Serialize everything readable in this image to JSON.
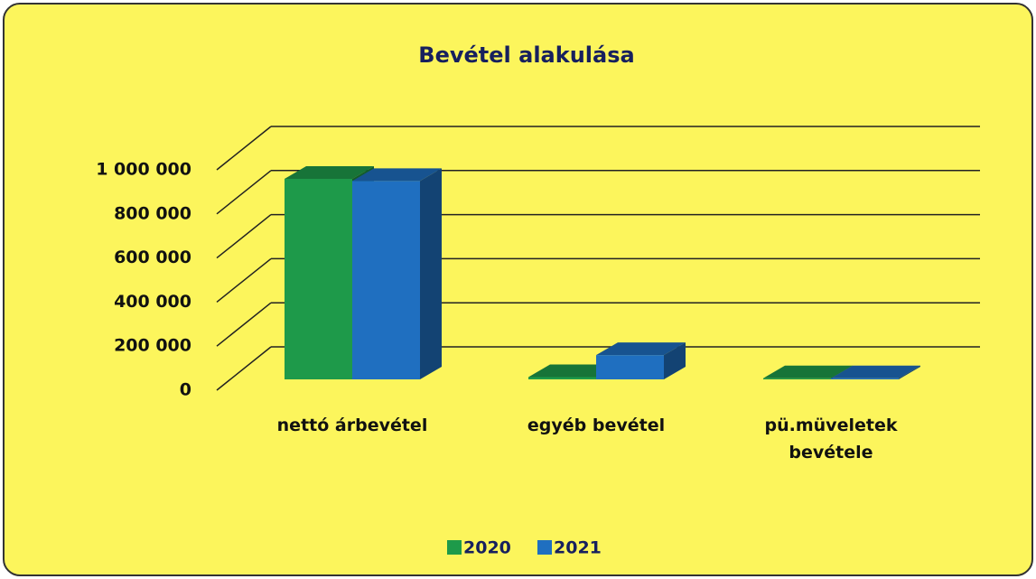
{
  "chart_data": {
    "type": "bar3d",
    "title": "Bevétel alakulása",
    "categories": [
      "nettó árbevétel",
      "egyéb bevétel",
      "pü.müveletek bevétele"
    ],
    "series": [
      {
        "name": "2020",
        "color": "#1e9a4a",
        "values": [
          910000,
          10000,
          5000
        ]
      },
      {
        "name": "2021",
        "color": "#1f6fc0",
        "values": [
          900000,
          110000,
          5000
        ]
      }
    ],
    "ylim": [
      0,
      1000000
    ],
    "yticks": [
      0,
      {
        "value": 200000,
        "label": "200 000"
      },
      {
        "value": 400000,
        "label": "400 000"
      },
      {
        "value": 600000,
        "label": "600 000"
      },
      {
        "value": 800000,
        "label": "800 000"
      },
      {
        "value": 1000000,
        "label": "1 000 000"
      }
    ],
    "grid": true,
    "legend": "bottom"
  }
}
